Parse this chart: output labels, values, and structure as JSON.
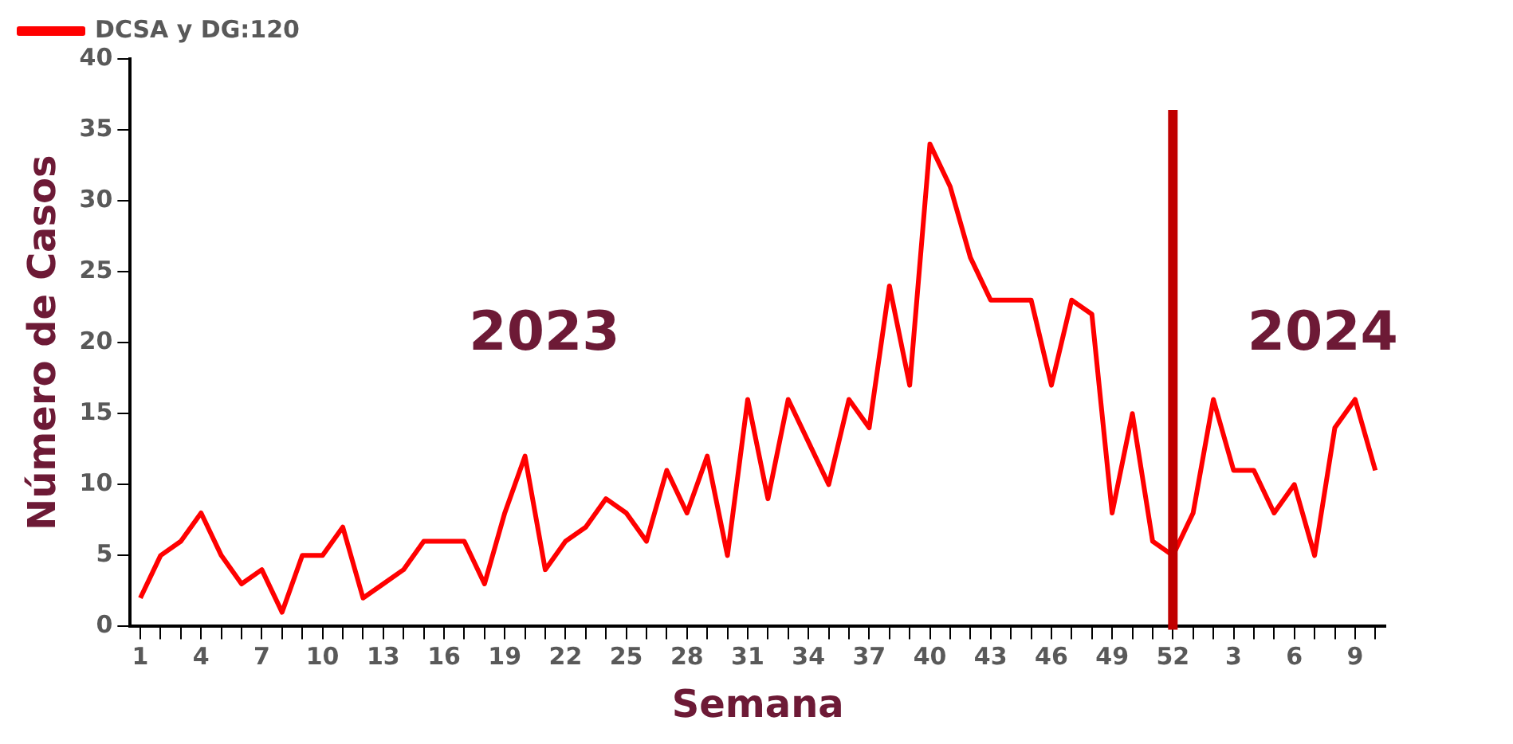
{
  "chart_data": {
    "type": "line",
    "xlabel": "Semana",
    "ylabel": "Número de Casos",
    "categories": [
      "1",
      null,
      null,
      "4",
      null,
      null,
      "7",
      null,
      null,
      "10",
      null,
      null,
      "13",
      null,
      null,
      "16",
      null,
      null,
      "19",
      null,
      null,
      "22",
      null,
      null,
      "25",
      null,
      null,
      "28",
      null,
      null,
      "31",
      null,
      null,
      "34",
      null,
      null,
      "37",
      null,
      null,
      "40",
      null,
      null,
      "43",
      null,
      null,
      "46",
      null,
      null,
      "49",
      null,
      null,
      "52",
      null,
      null,
      "3",
      null,
      null,
      "6",
      null,
      null,
      "9",
      null
    ],
    "series": [
      {
        "name": "DCSA y DG:120",
        "color": "#ff0000",
        "values": [
          2,
          5,
          6,
          8,
          5,
          3,
          4,
          1,
          5,
          5,
          7,
          2,
          3,
          4,
          6,
          6,
          6,
          3,
          8,
          12,
          4,
          6,
          7,
          9,
          8,
          6,
          11,
          8,
          12,
          5,
          16,
          9,
          16,
          13,
          10,
          16,
          14,
          24,
          17,
          34,
          31,
          26,
          23,
          23,
          23,
          17,
          23,
          22,
          8,
          15,
          6,
          5,
          8,
          16,
          11,
          11,
          8,
          10,
          5,
          14,
          16,
          11
        ]
      }
    ],
    "ylim": [
      0,
      40
    ],
    "yticks": [
      0,
      5,
      10,
      15,
      20,
      25,
      30,
      35,
      40
    ],
    "ref_lines": [
      {
        "axis": "x",
        "value": "52",
        "color": "#c00000"
      }
    ],
    "annotations": [
      "2023",
      "2024"
    ],
    "grid": false,
    "legend": "top left",
    "marker": "none",
    "line_style": "solid"
  }
}
